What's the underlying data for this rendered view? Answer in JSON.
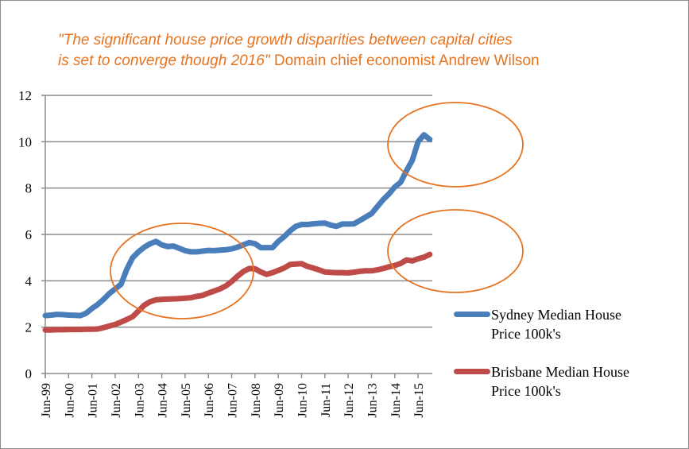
{
  "chart_data": {
    "type": "line",
    "title_line1_italic": "\"The significant house price growth disparities between capital cities",
    "title_line2_italic": "is set to converge though 2016\"",
    "title_line2_normal": " Domain chief economist Andrew Wilson",
    "xlabel": "",
    "ylabel": "",
    "ylim": [
      0,
      12
    ],
    "yticks": [
      0,
      2,
      4,
      6,
      8,
      10,
      12
    ],
    "xtick_labels": [
      "Jun-99",
      "Jun-00",
      "Jun-01",
      "Jun-02",
      "Jun-03",
      "Jun-04",
      "Jun-05",
      "Jun-06",
      "Jun-07",
      "Jun-08",
      "Jun-09",
      "Jun-10",
      "Jun-11",
      "Jun-12",
      "Jun-13",
      "Jun-14",
      "Jun-15"
    ],
    "grid": true,
    "legend_position": "right",
    "x": [
      "Jun-99",
      "Sep-99",
      "Dec-99",
      "Mar-00",
      "Jun-00",
      "Sep-00",
      "Dec-00",
      "Mar-01",
      "Jun-01",
      "Sep-01",
      "Dec-01",
      "Mar-02",
      "Jun-02",
      "Sep-02",
      "Dec-02",
      "Mar-03",
      "Jun-03",
      "Sep-03",
      "Dec-03",
      "Mar-04",
      "Jun-04",
      "Sep-04",
      "Dec-04",
      "Mar-05",
      "Jun-05",
      "Sep-05",
      "Dec-05",
      "Mar-06",
      "Jun-06",
      "Sep-06",
      "Dec-06",
      "Mar-07",
      "Jun-07",
      "Sep-07",
      "Dec-07",
      "Mar-08",
      "Jun-08",
      "Sep-08",
      "Dec-08",
      "Mar-09",
      "Jun-09",
      "Sep-09",
      "Dec-09",
      "Mar-10",
      "Jun-10",
      "Sep-10",
      "Dec-10",
      "Mar-11",
      "Jun-11",
      "Sep-11",
      "Dec-11",
      "Mar-12",
      "Jun-12",
      "Sep-12",
      "Dec-12",
      "Mar-13",
      "Jun-13",
      "Sep-13",
      "Dec-13",
      "Mar-14",
      "Jun-14",
      "Sep-14",
      "Dec-14",
      "Mar-15",
      "Jun-15",
      "Sep-15",
      "Dec-15"
    ],
    "series": [
      {
        "name": "Sydney Median House Price 100k's",
        "color": "#4A7EBB",
        "values": [
          2.5,
          2.52,
          2.55,
          2.54,
          2.52,
          2.51,
          2.5,
          2.6,
          2.8,
          2.98,
          3.2,
          3.45,
          3.65,
          3.85,
          4.5,
          5.0,
          5.25,
          5.45,
          5.6,
          5.7,
          5.55,
          5.48,
          5.5,
          5.4,
          5.3,
          5.25,
          5.25,
          5.28,
          5.31,
          5.3,
          5.32,
          5.34,
          5.38,
          5.45,
          5.55,
          5.65,
          5.6,
          5.43,
          5.43,
          5.43,
          5.7,
          5.9,
          6.15,
          6.35,
          6.43,
          6.43,
          6.46,
          6.48,
          6.49,
          6.4,
          6.35,
          6.45,
          6.45,
          6.46,
          6.6,
          6.75,
          6.9,
          7.2,
          7.5,
          7.75,
          8.05,
          8.25,
          8.75,
          9.2,
          10.0,
          10.3,
          10.1
        ]
      },
      {
        "name": "Brisbane Median House Price 100k's",
        "color": "#BE4B48",
        "values": [
          1.88,
          1.88,
          1.89,
          1.89,
          1.9,
          1.9,
          1.9,
          1.91,
          1.91,
          1.92,
          1.98,
          2.05,
          2.12,
          2.22,
          2.33,
          2.45,
          2.7,
          2.95,
          3.1,
          3.18,
          3.2,
          3.21,
          3.22,
          3.23,
          3.25,
          3.27,
          3.33,
          3.37,
          3.47,
          3.56,
          3.65,
          3.78,
          3.97,
          4.2,
          4.4,
          4.53,
          4.52,
          4.38,
          4.28,
          4.35,
          4.45,
          4.55,
          4.7,
          4.72,
          4.74,
          4.62,
          4.55,
          4.47,
          4.38,
          4.36,
          4.35,
          4.35,
          4.34,
          4.37,
          4.41,
          4.43,
          4.43,
          4.47,
          4.53,
          4.6,
          4.66,
          4.75,
          4.9,
          4.86,
          4.95,
          5.02,
          5.14
        ]
      }
    ],
    "legend": [
      {
        "line1": "Sydney Median House",
        "line2": "Price 100k's"
      },
      {
        "line1": "Brisbane Median House",
        "line2": "Price 100k's"
      }
    ],
    "annotation_color": "#E8731E"
  }
}
